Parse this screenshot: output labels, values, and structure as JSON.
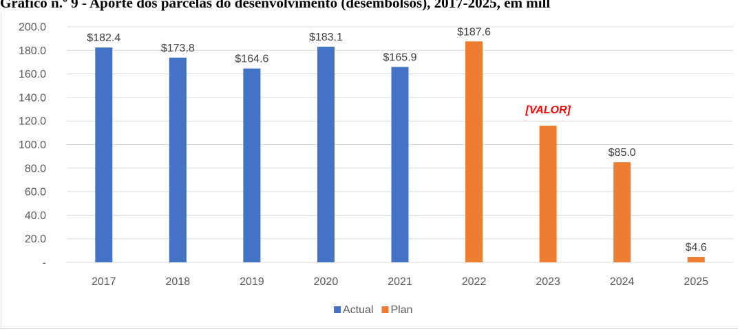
{
  "page_title": "Gráfico n.º 9 - Aporte dos parcelas do desenvolvimento (desembolsos), 2017-2025, em mill",
  "chart_data": {
    "type": "bar",
    "title": "",
    "categories": [
      "2017",
      "2018",
      "2019",
      "2020",
      "2021",
      "2022",
      "2023",
      "2024",
      "2025"
    ],
    "series": [
      {
        "name": "Actual",
        "color": "#4472c4",
        "values": [
          182.4,
          173.8,
          164.6,
          183.1,
          165.9,
          null,
          null,
          null,
          null
        ],
        "labels": [
          "$182.4",
          "$173.8",
          "$164.6",
          "$183.1",
          "$165.9",
          "",
          "",
          "",
          ""
        ]
      },
      {
        "name": "Plan",
        "color": "#ed7d31",
        "values": [
          null,
          null,
          null,
          null,
          null,
          187.6,
          116.0,
          85.0,
          4.6
        ],
        "labels": [
          "",
          "",
          "",
          "",
          "",
          "$187.6",
          "[VALOR]",
          "$85.0",
          "$4.6"
        ]
      }
    ],
    "ylim": [
      0,
      200
    ],
    "yticks": [
      0,
      20,
      40,
      60,
      80,
      100,
      120,
      140,
      160,
      180,
      200
    ],
    "ytick_labels": [
      "-",
      "20.0",
      "40.0",
      "60.0",
      "80.0",
      "100.0",
      "120.0",
      "140.0",
      "160.0",
      "180.0",
      "200.0"
    ],
    "grid": true,
    "legend": "bottom-center",
    "highlight_label_color": "#ff0000",
    "xlabel": "",
    "ylabel": ""
  }
}
